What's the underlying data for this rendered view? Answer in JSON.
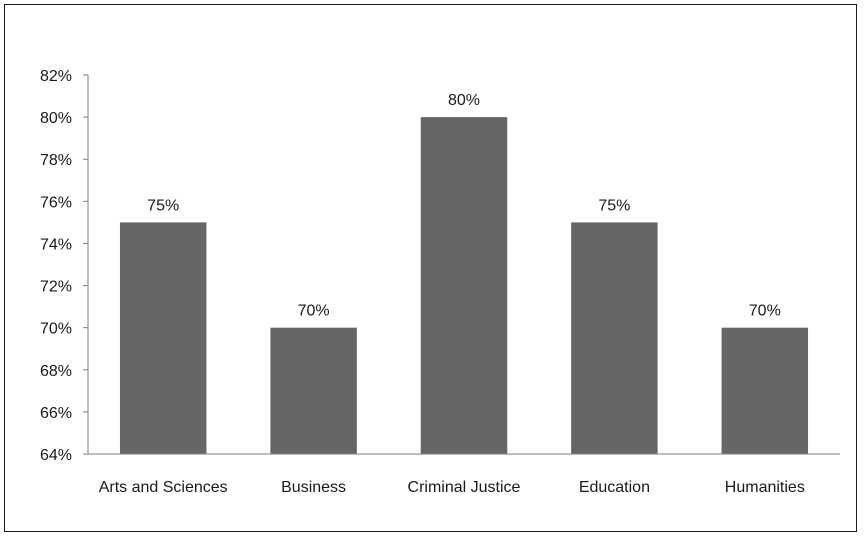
{
  "chart_data": {
    "type": "bar",
    "title": "",
    "xlabel": "",
    "ylabel": "",
    "categories": [
      "Arts and Sciences",
      "Business",
      "Criminal Justice",
      "Education",
      "Humanities"
    ],
    "values": [
      75,
      70,
      80,
      75,
      70
    ],
    "data_labels": [
      "75%",
      "70%",
      "80%",
      "75%",
      "70%"
    ],
    "ylim": [
      64,
      82
    ],
    "y_ticks": [
      64,
      66,
      68,
      70,
      72,
      74,
      76,
      78,
      80,
      82
    ],
    "y_tick_labels": [
      "64%",
      "66%",
      "68%",
      "70%",
      "72%",
      "74%",
      "76%",
      "78%",
      "80%",
      "82%"
    ],
    "grid": false,
    "legend": "none",
    "bar_color": "#666666",
    "axis_color": "#7f7f7f"
  }
}
